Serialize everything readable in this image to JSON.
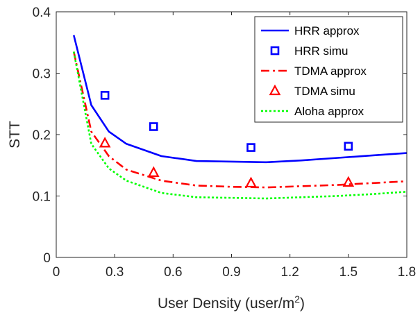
{
  "chart_data": {
    "type": "line",
    "xlabel": "User Density (user/m",
    "xlabel_sup": "2",
    "xlabel_end": ")",
    "ylabel": "STT",
    "xlim": [
      0,
      1.8
    ],
    "ylim": [
      0,
      0.4
    ],
    "xticks": [
      "0",
      "0.3",
      "0.6",
      "0.9",
      "1.2",
      "1.5",
      "1.8"
    ],
    "yticks": [
      "0",
      "0.1",
      "0.2",
      "0.3",
      "0.4"
    ],
    "grid": false,
    "legend_position": "top-right",
    "series": [
      {
        "name": "HRR approx",
        "style": "solid",
        "marker": "none",
        "color": "#0000ff",
        "x": [
          0.09,
          0.18,
          0.27,
          0.36,
          0.54,
          0.72,
          0.9,
          1.08,
          1.26,
          1.44,
          1.62,
          1.8
        ],
        "y": [
          0.362,
          0.248,
          0.205,
          0.185,
          0.165,
          0.157,
          0.156,
          0.155,
          0.158,
          0.162,
          0.166,
          0.17
        ]
      },
      {
        "name": "HRR simu",
        "style": "none",
        "marker": "square",
        "color": "#0000ff",
        "x": [
          0.25,
          0.5,
          1.0,
          1.5
        ],
        "y": [
          0.264,
          0.213,
          0.179,
          0.181
        ]
      },
      {
        "name": "TDMA approx",
        "style": "dashdot",
        "marker": "none",
        "color": "#ff0000",
        "x": [
          0.09,
          0.18,
          0.27,
          0.36,
          0.54,
          0.72,
          0.9,
          1.08,
          1.26,
          1.44,
          1.62,
          1.8
        ],
        "y": [
          0.335,
          0.205,
          0.165,
          0.143,
          0.125,
          0.117,
          0.115,
          0.114,
          0.116,
          0.118,
          0.121,
          0.124
        ]
      },
      {
        "name": "TDMA simu",
        "style": "none",
        "marker": "triangle",
        "color": "#ff0000",
        "x": [
          0.25,
          0.5,
          1.0,
          1.5
        ],
        "y": [
          0.186,
          0.138,
          0.121,
          0.122
        ]
      },
      {
        "name": "Aloha approx",
        "style": "dotted",
        "marker": "none",
        "color": "#00ff00",
        "x": [
          0.09,
          0.18,
          0.27,
          0.36,
          0.54,
          0.72,
          0.9,
          1.08,
          1.26,
          1.44,
          1.62,
          1.8
        ],
        "y": [
          0.335,
          0.185,
          0.145,
          0.125,
          0.105,
          0.098,
          0.097,
          0.096,
          0.098,
          0.1,
          0.103,
          0.107
        ]
      }
    ]
  }
}
